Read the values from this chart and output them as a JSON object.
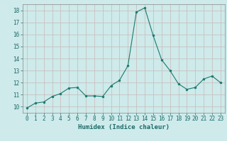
{
  "x": [
    0,
    1,
    2,
    3,
    4,
    5,
    6,
    7,
    8,
    9,
    10,
    11,
    12,
    13,
    14,
    15,
    16,
    17,
    18,
    19,
    20,
    21,
    22,
    23
  ],
  "y": [
    9.9,
    10.3,
    10.4,
    10.85,
    11.1,
    11.55,
    11.6,
    10.9,
    10.9,
    10.85,
    11.75,
    12.2,
    13.4,
    17.85,
    18.2,
    15.9,
    13.9,
    13.0,
    11.9,
    11.45,
    11.6,
    12.3,
    12.55,
    12.0
  ],
  "line_color": "#1a7a6e",
  "marker_color": "#1a7a6e",
  "bg_color": "#ceeaea",
  "grid_color": "#c8b8b8",
  "xlabel": "Humidex (Indice chaleur)",
  "yticks": [
    10,
    11,
    12,
    13,
    14,
    15,
    16,
    17,
    18
  ],
  "ylim": [
    9.5,
    18.5
  ],
  "xlim": [
    -0.5,
    23.5
  ]
}
